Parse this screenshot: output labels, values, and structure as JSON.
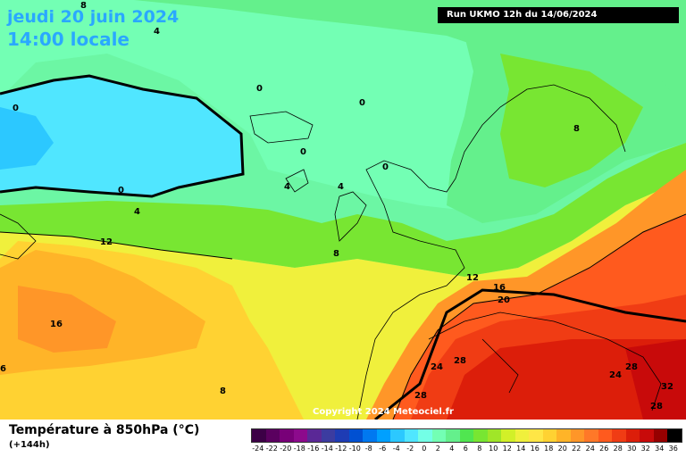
{
  "header": {
    "date": "jeudi 20 juin 2024",
    "time": "14:00 locale",
    "run": "Run UKMO 12h du 14/06/2024"
  },
  "map": {
    "copyright": "Copyright 2024 Meteociel.fr",
    "isotherm_labels": [
      "8",
      "4",
      "0",
      "0",
      "0",
      "0",
      "0",
      "0",
      "4",
      "4",
      "4",
      "8",
      "8",
      "12",
      "12",
      "16",
      "20",
      "16",
      "24",
      "28",
      "28",
      "28",
      "24",
      "32",
      "28",
      "6",
      "8"
    ]
  },
  "legend": {
    "title": "Température à 850hPa (°C)",
    "subtitle": "(+144h)",
    "ticks": [
      "-24",
      "-22",
      "-20",
      "-18",
      "-16",
      "-14",
      "-12",
      "-10",
      "-8",
      "-6",
      "-4",
      "-2",
      "0",
      "2",
      "4",
      "6",
      "8",
      "10",
      "12",
      "14",
      "16",
      "18",
      "20",
      "22",
      "24",
      "26",
      "28",
      "30",
      "32",
      "34",
      "36"
    ],
    "colors": [
      "#3c0046",
      "#5a005f",
      "#780078",
      "#8c0a8c",
      "#5a2896",
      "#3c3ca0",
      "#1e3cb4",
      "#0050d2",
      "#0078f0",
      "#00a0ff",
      "#2cc8ff",
      "#50e6ff",
      "#73ffe6",
      "#73ffb4",
      "#64f08c",
      "#50e650",
      "#78e632",
      "#a0e628",
      "#d2f028",
      "#f0f03c",
      "#ffe646",
      "#ffd232",
      "#ffb428",
      "#ff9628",
      "#ff7828",
      "#ff5a1e",
      "#f03c14",
      "#dc1e0a",
      "#c80a0a",
      "#960000",
      "#000000"
    ]
  }
}
